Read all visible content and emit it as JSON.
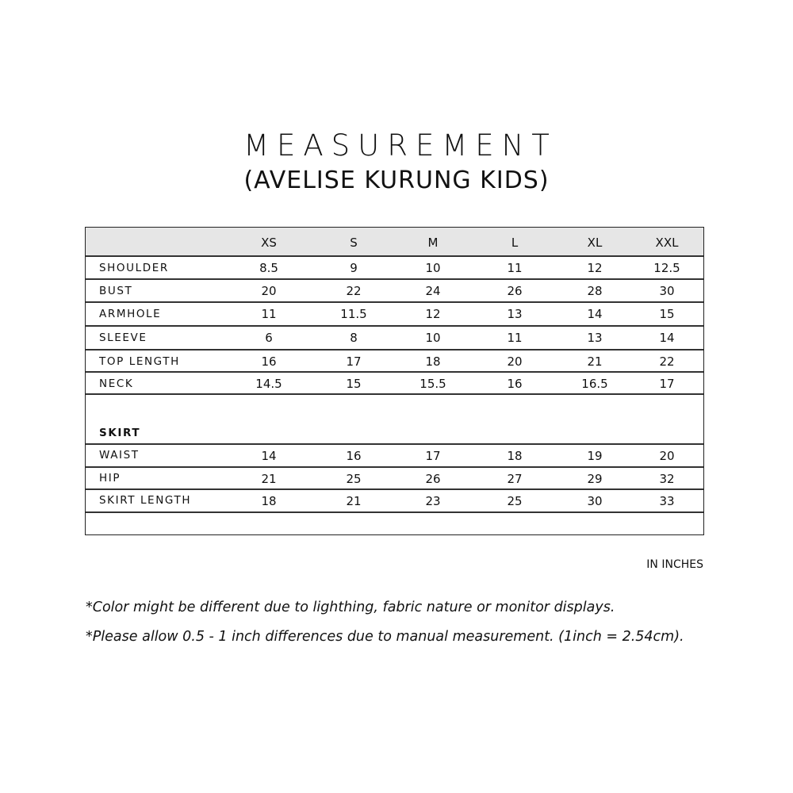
{
  "title": "MEASUREMENT",
  "subtitle": "(AVELISE KURUNG KIDS)",
  "table": {
    "sizes": [
      "XS",
      "S",
      "M",
      "L",
      "XL",
      "XXL"
    ],
    "top_rows": [
      {
        "label": "SHOULDER",
        "values": [
          "8.5",
          "9",
          "10",
          "11",
          "12",
          "12.5"
        ]
      },
      {
        "label": "BUST",
        "values": [
          "20",
          "22",
          "24",
          "26",
          "28",
          "30"
        ]
      },
      {
        "label": "ARMHOLE",
        "values": [
          "11",
          "11.5",
          "12",
          "13",
          "14",
          "15"
        ]
      },
      {
        "label": "SLEEVE",
        "values": [
          "6",
          "8",
          "10",
          "11",
          "13",
          "14"
        ]
      },
      {
        "label": "TOP LENGTH",
        "values": [
          "16",
          "17",
          "18",
          "20",
          "21",
          "22"
        ]
      },
      {
        "label": "NECK",
        "values": [
          "14.5",
          "15",
          "15.5",
          "16",
          "16.5",
          "17"
        ]
      }
    ],
    "section_label": "SKIRT",
    "skirt_rows": [
      {
        "label": "WAIST",
        "values": [
          "14",
          "16",
          "17",
          "18",
          "19",
          "20"
        ]
      },
      {
        "label": "HIP",
        "values": [
          "21",
          "25",
          "26",
          "27",
          "29",
          "32"
        ]
      },
      {
        "label": "SKIRT LENGTH",
        "values": [
          "18",
          "21",
          "23",
          "25",
          "30",
          "33"
        ]
      }
    ],
    "header_bg": "#e6e6e6"
  },
  "unit": "IN INCHES",
  "notes": [
    "*Color might be different due to lighthing, fabric nature or monitor displays.",
    "*Please allow 0.5 - 1 inch differences due to manual measurement. (1inch = 2.54cm)."
  ]
}
